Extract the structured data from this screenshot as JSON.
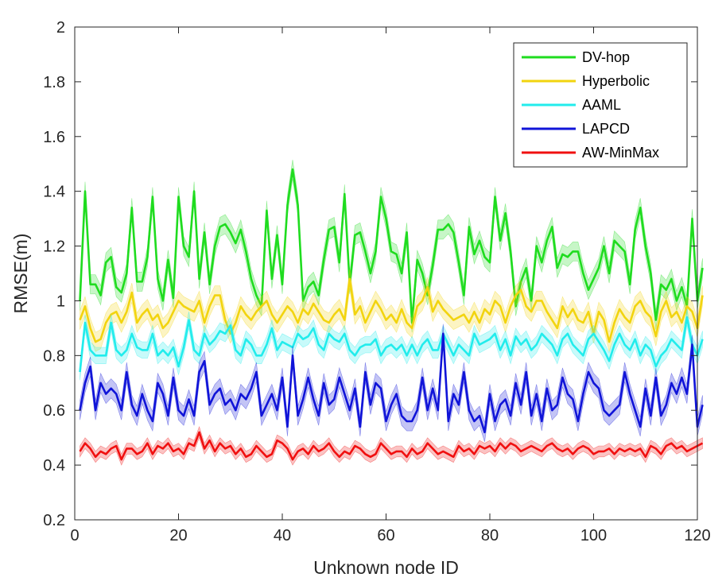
{
  "chart_data": {
    "type": "line",
    "title": "",
    "xlabel": "Unknown node ID",
    "ylabel": "RMSE(m)",
    "xlim": [
      0,
      120
    ],
    "ylim": [
      0.2,
      2
    ],
    "x_ticks": [
      0,
      20,
      40,
      60,
      80,
      100,
      120
    ],
    "y_ticks": [
      0.2,
      0.4,
      0.6,
      0.8,
      1,
      1.2,
      1.4,
      1.6,
      1.8,
      2
    ],
    "y_tick_labels": [
      "0.2",
      "0.4",
      "0.6",
      "0.8",
      "1",
      "1.2",
      "1.4",
      "1.6",
      "1.8",
      "2"
    ],
    "grid": false,
    "legend_position": "top-right",
    "x_start": 1,
    "x_step": 1,
    "series": [
      {
        "name": "DV-hop",
        "color": "#1fdc1f",
        "band": 0.035,
        "values": [
          1.0,
          1.4,
          1.06,
          1.06,
          1.02,
          1.14,
          1.16,
          1.05,
          1.03,
          1.1,
          1.34,
          1.07,
          1.07,
          1.16,
          1.38,
          1.08,
          1.0,
          1.15,
          1.01,
          1.38,
          1.2,
          1.16,
          1.4,
          1.08,
          1.25,
          1.06,
          1.2,
          1.27,
          1.28,
          1.25,
          1.21,
          1.26,
          1.18,
          1.08,
          1.02,
          0.98,
          1.33,
          1.08,
          1.24,
          1.06,
          1.35,
          1.48,
          1.35,
          1.0,
          1.05,
          1.07,
          1.02,
          1.15,
          1.26,
          1.27,
          1.14,
          1.39,
          1.06,
          1.24,
          1.25,
          1.18,
          1.1,
          1.18,
          1.38,
          1.3,
          1.18,
          1.17,
          1.1,
          1.25,
          0.92,
          1.15,
          1.1,
          1.02,
          1.13,
          1.26,
          1.26,
          1.28,
          1.25,
          1.14,
          1.02,
          1.27,
          1.17,
          1.22,
          1.16,
          1.14,
          1.38,
          1.22,
          1.32,
          1.18,
          0.98,
          1.07,
          1.12,
          1.0,
          1.2,
          1.14,
          1.22,
          1.27,
          1.12,
          1.17,
          1.16,
          1.18,
          1.18,
          1.1,
          1.04,
          1.08,
          1.12,
          1.2,
          1.1,
          1.22,
          1.2,
          1.18,
          1.06,
          1.26,
          1.34,
          1.2,
          1.1,
          0.93,
          1.06,
          1.04,
          1.08,
          1.0,
          1.05,
          0.98,
          1.3,
          1.0,
          1.12
        ]
      },
      {
        "name": "Hyperbolic",
        "color": "#f2d40f",
        "band": 0.035,
        "values": [
          0.93,
          0.98,
          0.9,
          0.85,
          0.86,
          0.92,
          0.95,
          0.96,
          0.92,
          0.96,
          1.03,
          0.92,
          0.95,
          0.97,
          0.93,
          0.95,
          0.9,
          0.92,
          0.96,
          1.0,
          0.98,
          0.97,
          0.96,
          1.0,
          0.92,
          0.98,
          1.02,
          1.02,
          0.93,
          0.88,
          0.92,
          0.98,
          0.95,
          0.93,
          0.96,
          0.98,
          1.0,
          0.95,
          0.92,
          0.95,
          0.98,
          0.96,
          0.92,
          0.97,
          0.95,
          0.99,
          0.96,
          0.93,
          0.92,
          0.95,
          0.97,
          0.93,
          1.08,
          0.95,
          0.98,
          0.92,
          0.96,
          1.0,
          0.97,
          0.93,
          0.95,
          0.92,
          0.97,
          0.92,
          0.9,
          0.98,
          1.0,
          1.05,
          0.96,
          1.0,
          0.97,
          0.95,
          0.93,
          0.94,
          0.95,
          0.92,
          0.96,
          0.92,
          0.97,
          0.95,
          1.0,
          0.98,
          0.92,
          0.98,
          1.02,
          1.04,
          0.98,
          0.96,
          1.0,
          1.0,
          0.96,
          0.93,
          0.9,
          0.98,
          0.94,
          0.97,
          0.93,
          0.92,
          0.96,
          0.88,
          0.96,
          0.93,
          0.85,
          0.92,
          0.97,
          0.94,
          0.92,
          0.98,
          1.0,
          0.96,
          0.94,
          0.87,
          0.96,
          1.0,
          0.94,
          0.96,
          0.92,
          0.98,
          0.96,
          0.9,
          1.02
        ]
      },
      {
        "name": "AAML",
        "color": "#22ecec",
        "band": 0.03,
        "values": [
          0.74,
          0.92,
          0.82,
          0.8,
          0.8,
          0.8,
          0.92,
          0.82,
          0.8,
          0.82,
          0.88,
          0.83,
          0.82,
          0.82,
          0.88,
          0.8,
          0.82,
          0.8,
          0.83,
          0.76,
          0.83,
          0.93,
          0.82,
          0.8,
          0.88,
          0.84,
          0.86,
          0.89,
          0.88,
          0.91,
          0.82,
          0.8,
          0.86,
          0.84,
          0.8,
          0.8,
          0.84,
          0.9,
          0.82,
          0.85,
          0.84,
          0.83,
          0.88,
          0.86,
          0.87,
          0.9,
          0.84,
          0.82,
          0.88,
          0.86,
          0.85,
          0.88,
          0.82,
          0.8,
          0.83,
          0.84,
          0.84,
          0.86,
          0.8,
          0.83,
          0.84,
          0.82,
          0.84,
          0.8,
          0.84,
          0.8,
          0.84,
          0.86,
          0.82,
          0.82,
          0.88,
          0.84,
          0.8,
          0.84,
          0.82,
          0.8,
          0.88,
          0.84,
          0.85,
          0.86,
          0.88,
          0.82,
          0.86,
          0.8,
          0.87,
          0.84,
          0.86,
          0.82,
          0.84,
          0.88,
          0.86,
          0.84,
          0.8,
          0.86,
          0.88,
          0.84,
          0.82,
          0.8,
          0.86,
          0.88,
          0.85,
          0.82,
          0.78,
          0.84,
          0.88,
          0.84,
          0.82,
          0.86,
          0.8,
          0.84,
          0.82,
          0.76,
          0.8,
          0.82,
          0.86,
          0.84,
          0.82,
          0.94,
          0.84,
          0.8,
          0.86
        ]
      },
      {
        "name": "LAPCD",
        "color": "#1014d8",
        "band": 0.035,
        "values": [
          0.6,
          0.7,
          0.76,
          0.6,
          0.7,
          0.66,
          0.68,
          0.66,
          0.6,
          0.74,
          0.62,
          0.58,
          0.66,
          0.6,
          0.56,
          0.7,
          0.66,
          0.58,
          0.72,
          0.6,
          0.58,
          0.64,
          0.58,
          0.74,
          0.78,
          0.62,
          0.66,
          0.68,
          0.62,
          0.64,
          0.6,
          0.66,
          0.64,
          0.68,
          0.74,
          0.58,
          0.62,
          0.66,
          0.6,
          0.72,
          0.54,
          0.8,
          0.58,
          0.64,
          0.72,
          0.64,
          0.58,
          0.7,
          0.62,
          0.64,
          0.72,
          0.66,
          0.6,
          0.68,
          0.54,
          0.74,
          0.62,
          0.7,
          0.68,
          0.56,
          0.62,
          0.66,
          0.58,
          0.56,
          0.56,
          0.6,
          0.72,
          0.6,
          0.68,
          0.6,
          0.88,
          0.56,
          0.66,
          0.62,
          0.74,
          0.6,
          0.56,
          0.58,
          0.52,
          0.66,
          0.56,
          0.62,
          0.64,
          0.58,
          0.7,
          0.62,
          0.74,
          0.58,
          0.66,
          0.56,
          0.68,
          0.6,
          0.62,
          0.72,
          0.66,
          0.64,
          0.56,
          0.66,
          0.74,
          0.7,
          0.68,
          0.6,
          0.58,
          0.6,
          0.62,
          0.74,
          0.66,
          0.6,
          0.54,
          0.68,
          0.58,
          0.72,
          0.58,
          0.62,
          0.7,
          0.66,
          0.72,
          0.66,
          0.84,
          0.54,
          0.62
        ]
      },
      {
        "name": "AW-MinMax",
        "color": "#f01010",
        "band": 0.02,
        "values": [
          0.45,
          0.48,
          0.46,
          0.43,
          0.45,
          0.44,
          0.46,
          0.47,
          0.42,
          0.46,
          0.46,
          0.44,
          0.45,
          0.48,
          0.44,
          0.47,
          0.46,
          0.48,
          0.45,
          0.46,
          0.44,
          0.48,
          0.47,
          0.52,
          0.46,
          0.49,
          0.45,
          0.48,
          0.46,
          0.47,
          0.44,
          0.46,
          0.43,
          0.44,
          0.47,
          0.45,
          0.43,
          0.44,
          0.49,
          0.48,
          0.46,
          0.42,
          0.45,
          0.46,
          0.44,
          0.47,
          0.45,
          0.46,
          0.48,
          0.45,
          0.43,
          0.45,
          0.44,
          0.47,
          0.46,
          0.44,
          0.43,
          0.44,
          0.48,
          0.46,
          0.44,
          0.45,
          0.45,
          0.43,
          0.46,
          0.44,
          0.45,
          0.48,
          0.46,
          0.44,
          0.45,
          0.44,
          0.43,
          0.47,
          0.45,
          0.46,
          0.44,
          0.47,
          0.46,
          0.47,
          0.45,
          0.48,
          0.46,
          0.48,
          0.47,
          0.45,
          0.46,
          0.47,
          0.46,
          0.45,
          0.47,
          0.48,
          0.46,
          0.45,
          0.46,
          0.44,
          0.46,
          0.47,
          0.46,
          0.44,
          0.45,
          0.45,
          0.46,
          0.44,
          0.46,
          0.45,
          0.46,
          0.45,
          0.46,
          0.43,
          0.47,
          0.46,
          0.44,
          0.47,
          0.48,
          0.46,
          0.47,
          0.45,
          0.46,
          0.47,
          0.48
        ]
      }
    ]
  }
}
